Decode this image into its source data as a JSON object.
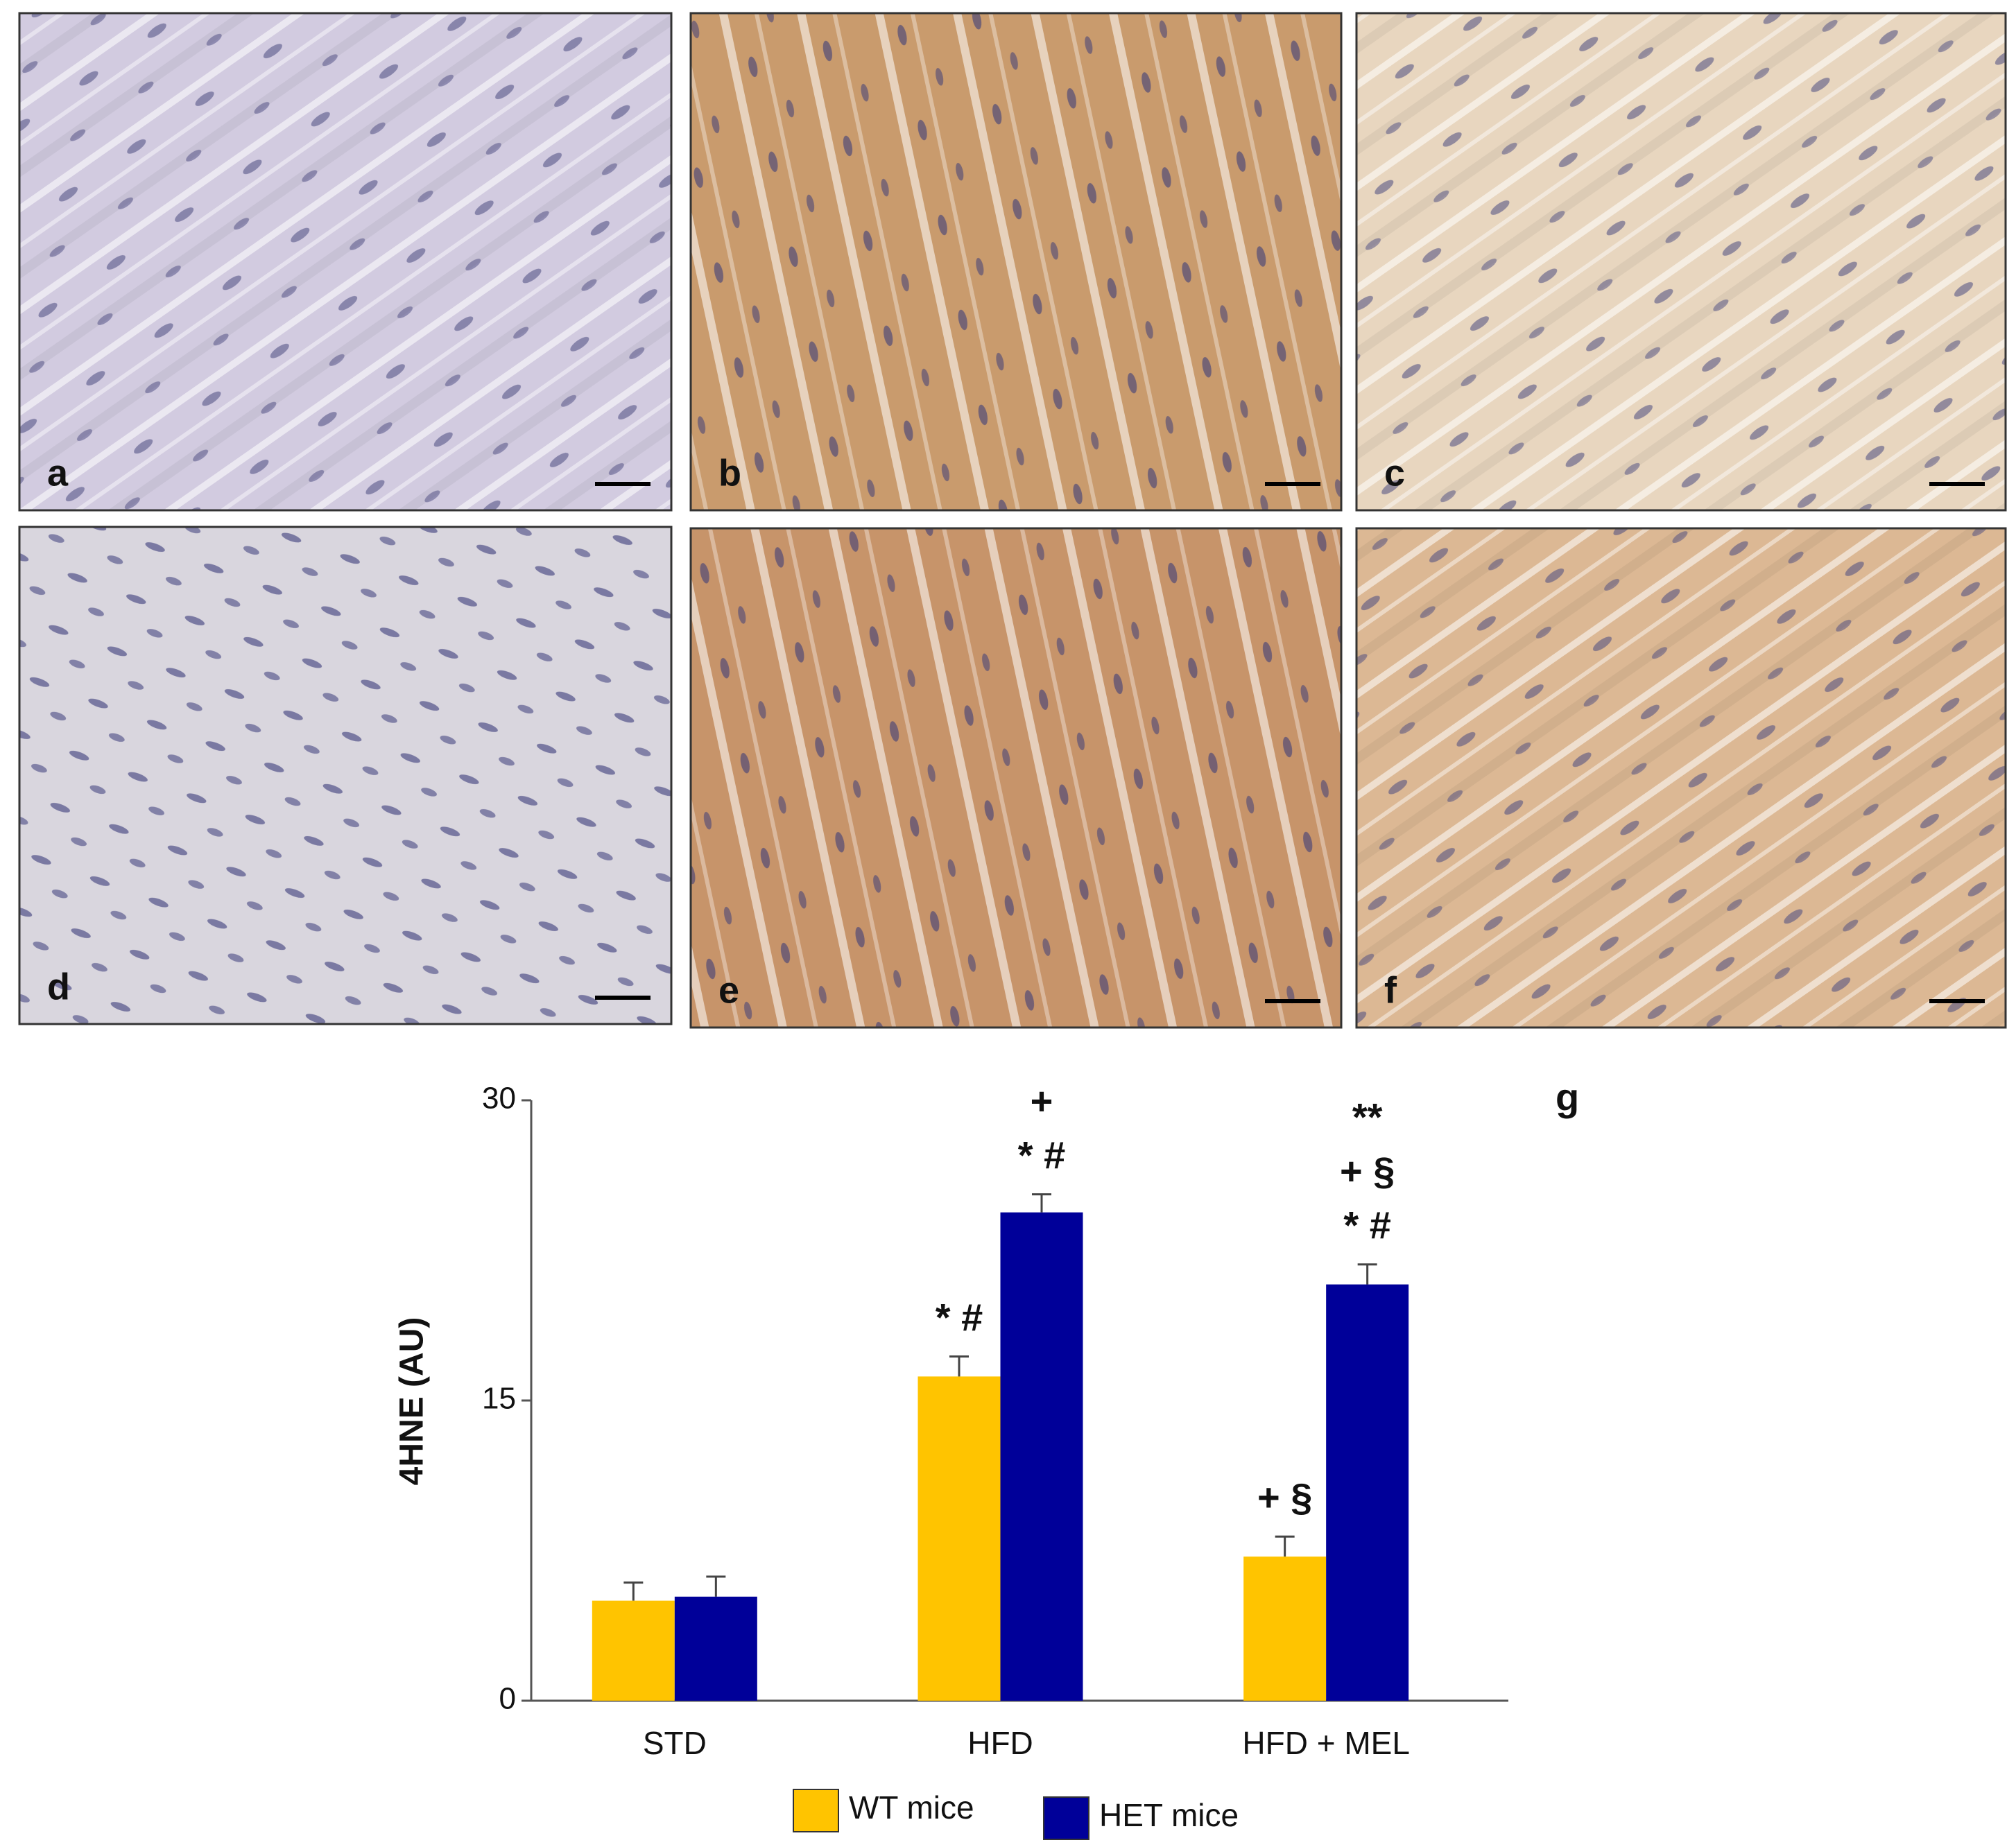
{
  "panels": [
    {
      "label": "a"
    },
    {
      "label": "b"
    },
    {
      "label": "c"
    },
    {
      "label": "d"
    },
    {
      "label": "e"
    },
    {
      "label": "f"
    }
  ],
  "chart_data": {
    "type": "bar",
    "panel_label": "g",
    "y_label": "4HNE (AU)",
    "categories": [
      "STD",
      "HFD",
      "HFD + MEL"
    ],
    "series": [
      {
        "name": "WT mice",
        "color": "#ffc400",
        "values": [
          5.0,
          16.2,
          7.2
        ],
        "errors": [
          0.9,
          1.0,
          1.0
        ],
        "markers": [
          null,
          [
            "* #"
          ],
          [
            "+ §"
          ]
        ]
      },
      {
        "name": "HET mice",
        "color": "#000099",
        "values": [
          5.2,
          24.4,
          20.8
        ],
        "errors": [
          1.0,
          0.9,
          1.0
        ],
        "markers": [
          null,
          [
            "+",
            "* #"
          ],
          [
            "**",
            "+ §",
            "* #"
          ]
        ]
      }
    ],
    "ylim": [
      0,
      30
    ],
    "yticks": [
      0,
      15,
      30
    ],
    "grid": false
  }
}
